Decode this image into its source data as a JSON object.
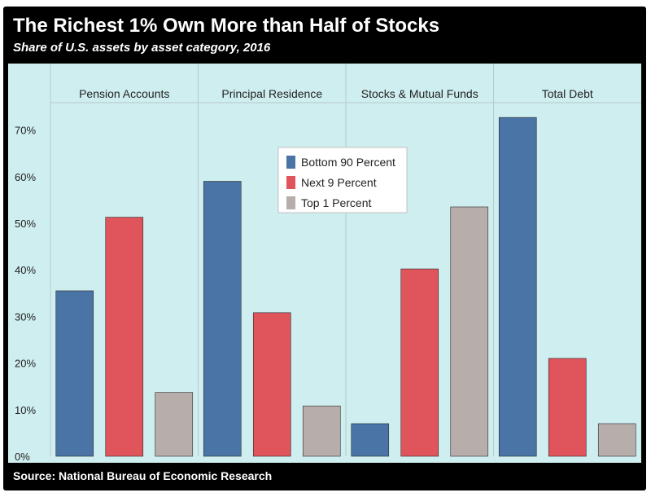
{
  "title": "The Richest 1% Own More than Half of Stocks",
  "subtitle": "Share of U.S. assets by asset category, 2016",
  "source": "Source: National Bureau of Economic Research",
  "colors": {
    "plot_bg": "#cfeef0",
    "frame": "#000000",
    "grid": "#b8c8ca"
  },
  "chart_data": {
    "type": "bar",
    "categories": [
      "Pension Accounts",
      "Principal Residence",
      "Stocks & Mutual Funds",
      "Total Debt"
    ],
    "series": [
      {
        "name": "Bottom 90 Percent",
        "color": "#4a74a6",
        "values": [
          35.5,
          59,
          7,
          72.7
        ]
      },
      {
        "name": "Next 9 Percent",
        "color": "#e0545c",
        "values": [
          51.3,
          30.8,
          40.2,
          21
        ]
      },
      {
        "name": "Top 1 Percent",
        "color": "#b7aeab",
        "values": [
          13.7,
          10.8,
          53.5,
          7
        ]
      }
    ],
    "yticks": [
      "0%",
      "10%",
      "20%",
      "30%",
      "40%",
      "50%",
      "60%",
      "70%"
    ],
    "ylim": [
      0,
      75
    ],
    "grid": true,
    "legend": "top-center",
    "title": "The Richest 1% Own More than Half of Stocks",
    "subtitle": "Share of U.S. assets by asset category, 2016"
  }
}
